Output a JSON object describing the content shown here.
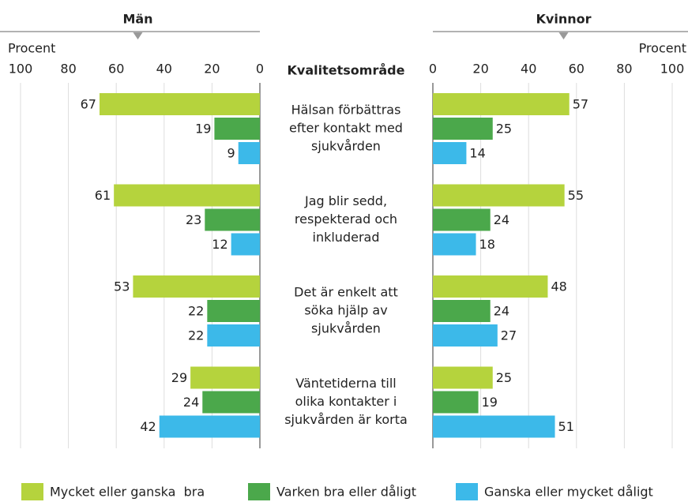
{
  "chart_data": {
    "type": "butterfly",
    "category_title": "Kvalitetsområde",
    "categories": [
      [
        "Hälsan förbättras",
        "efter kontakt med",
        "sjukvården"
      ],
      [
        "Jag blir sedd,",
        "respekterad och",
        "inkluderad"
      ],
      [
        "Det är enkelt att",
        "söka hjälp av",
        "sjukvården"
      ],
      [
        "Väntetiderna till",
        "olika kontakter i",
        "sjukvården är korta"
      ]
    ],
    "series": [
      {
        "name": "Mycket eller ganska  bra",
        "color": "#b5d33d"
      },
      {
        "name": "Varken bra eller dåligt",
        "color": "#4ba84b"
      },
      {
        "name": "Ganska eller mycket dåligt",
        "color": "#3cb9e9"
      }
    ],
    "panels": [
      {
        "title": "Män",
        "axis_label": "Procent",
        "direction": "left",
        "xlim": [
          0,
          100
        ],
        "xticks": [
          0,
          20,
          40,
          60,
          80,
          100
        ],
        "values": [
          [
            67,
            61,
            53,
            29
          ],
          [
            19,
            23,
            22,
            24
          ],
          [
            9,
            12,
            22,
            42
          ]
        ]
      },
      {
        "title": "Kvinnor",
        "axis_label": "Procent",
        "direction": "right",
        "xlim": [
          0,
          100
        ],
        "xticks": [
          0,
          20,
          40,
          60,
          80,
          100
        ],
        "values": [
          [
            57,
            55,
            48,
            25
          ],
          [
            25,
            24,
            24,
            19
          ],
          [
            14,
            18,
            27,
            51
          ]
        ]
      }
    ]
  }
}
